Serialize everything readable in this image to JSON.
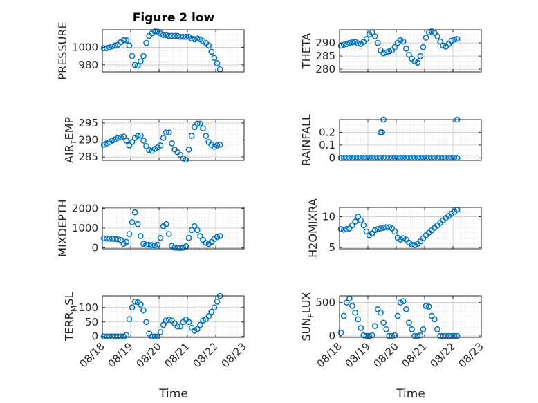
{
  "figure": {
    "title": "Figure 2 low",
    "xlabel": "Time"
  },
  "style": {
    "marker_color": "#0072BD",
    "axis_color": "#262626",
    "grid_color": "#d9d9d9"
  },
  "chart_data": [
    {
      "type": "scatter",
      "ylabel": "PRESSURE",
      "ylim": [
        972,
        1020
      ],
      "yticks": [
        980,
        1000
      ],
      "xticks": [
        "08/18",
        "08/19",
        "08/20",
        "08/21",
        "08/22",
        "08/23"
      ],
      "xlim": [
        0,
        5
      ],
      "grid": true,
      "x": [
        0.05,
        0.15,
        0.25,
        0.35,
        0.45,
        0.55,
        0.65,
        0.75,
        0.85,
        0.95,
        1.05,
        1.15,
        1.25,
        1.35,
        1.45,
        1.55,
        1.65,
        1.75,
        1.85,
        1.95,
        2.05,
        2.15,
        2.25,
        2.35,
        2.45,
        2.55,
        2.65,
        2.75,
        2.85,
        2.95,
        3.05,
        3.15,
        3.25,
        3.35,
        3.45,
        3.55,
        3.65,
        3.75,
        3.85,
        3.95,
        4.05,
        4.15
      ],
      "y": [
        999,
        999,
        1000,
        1001,
        1002,
        1003,
        1006,
        1008,
        1008,
        1002,
        990,
        980,
        979,
        984,
        990,
        1005,
        1013,
        1016,
        1018,
        1018,
        1016,
        1014,
        1014,
        1013,
        1013,
        1013,
        1013,
        1012,
        1012,
        1012,
        1012,
        1010,
        1009,
        1010,
        1009,
        1007,
        1005,
        1002,
        995,
        988,
        982,
        975
      ]
    },
    {
      "type": "scatter",
      "ylabel": "THETA",
      "ylim": [
        279,
        295
      ],
      "yticks": [
        280,
        285,
        290
      ],
      "xticks": [
        "08/18",
        "08/19",
        "08/20",
        "08/21",
        "08/22",
        "08/23"
      ],
      "xlim": [
        0,
        5
      ],
      "grid": true,
      "x": [
        0.05,
        0.15,
        0.25,
        0.35,
        0.45,
        0.55,
        0.65,
        0.75,
        0.85,
        0.95,
        1.05,
        1.15,
        1.25,
        1.35,
        1.45,
        1.55,
        1.65,
        1.75,
        1.85,
        1.95,
        2.05,
        2.15,
        2.25,
        2.35,
        2.45,
        2.55,
        2.65,
        2.75,
        2.85,
        2.95,
        3.05,
        3.15,
        3.25,
        3.35,
        3.45,
        3.55,
        3.65,
        3.75,
        3.85,
        3.95,
        4.05,
        4.15
      ],
      "y": [
        289,
        289.3,
        289.6,
        290,
        290.2,
        290.4,
        289.8,
        289.6,
        290.4,
        291.5,
        293.2,
        294,
        292.5,
        290,
        287.2,
        286,
        286.4,
        286.8,
        287.2,
        288.4,
        290,
        291,
        290.5,
        287.8,
        285.5,
        284,
        283,
        282.5,
        285,
        288.4,
        292,
        294,
        294.4,
        293.8,
        292.5,
        290.5,
        289,
        288.6,
        289.6,
        290.8,
        291.3,
        291.5
      ]
    },
    {
      "type": "scatter",
      "ylabel": "AIR_TEMP",
      "ylim": [
        284,
        296
      ],
      "yticks": [
        285,
        290,
        295
      ],
      "xticks": [
        "08/18",
        "08/19",
        "08/20",
        "08/21",
        "08/22",
        "08/23"
      ],
      "xlim": [
        0,
        5
      ],
      "grid": true,
      "x": [
        0.05,
        0.15,
        0.25,
        0.35,
        0.45,
        0.55,
        0.65,
        0.75,
        0.85,
        0.95,
        1.05,
        1.15,
        1.25,
        1.35,
        1.45,
        1.55,
        1.65,
        1.75,
        1.85,
        1.95,
        2.05,
        2.15,
        2.25,
        2.35,
        2.45,
        2.55,
        2.65,
        2.75,
        2.85,
        2.95,
        3.05,
        3.15,
        3.25,
        3.35,
        3.45,
        3.55,
        3.65,
        3.75,
        3.85,
        3.95,
        4.05,
        4.15
      ],
      "y": [
        288.6,
        289,
        289.4,
        289.8,
        290.2,
        290.6,
        290.8,
        291,
        289.8,
        288.4,
        289.4,
        290.6,
        291.2,
        291.3,
        289.8,
        288.2,
        287,
        286.8,
        287.4,
        287.8,
        288.4,
        290.6,
        292.2,
        292.2,
        289,
        287.2,
        286.4,
        285.6,
        284.6,
        284.2,
        287.2,
        291.2,
        293.8,
        294.8,
        294.8,
        293.4,
        291.2,
        289.4,
        288.6,
        288,
        288.4,
        288.6
      ]
    },
    {
      "type": "scatter",
      "ylabel": "RAINFALL",
      "ylim": [
        -0.02,
        0.3
      ],
      "yticks": [
        0,
        0.1,
        0.2
      ],
      "xticks": [
        "08/18",
        "08/19",
        "08/20",
        "08/21",
        "08/22",
        "08/23"
      ],
      "xlim": [
        0,
        5
      ],
      "grid": true,
      "x": [
        0.05,
        0.15,
        0.25,
        0.35,
        0.45,
        0.55,
        0.65,
        0.75,
        0.85,
        0.95,
        1.05,
        1.15,
        1.25,
        1.35,
        1.45,
        1.55,
        1.65,
        1.75,
        1.85,
        1.95,
        2.05,
        2.15,
        2.25,
        2.35,
        2.45,
        2.55,
        2.65,
        2.75,
        2.85,
        2.95,
        3.05,
        3.15,
        3.25,
        3.35,
        3.45,
        3.55,
        3.65,
        3.75,
        3.85,
        3.95,
        4.05,
        4.15,
        1.45,
        1.5,
        1.55,
        4.15
      ],
      "y": [
        0,
        0,
        0,
        0,
        0,
        0,
        0,
        0,
        0,
        0,
        0,
        0,
        0,
        0,
        0,
        0,
        0,
        0,
        0,
        0,
        0,
        0,
        0,
        0,
        0,
        0,
        0,
        0,
        0,
        0,
        0,
        0,
        0,
        0,
        0,
        0,
        0,
        0,
        0,
        0,
        0,
        0,
        0.2,
        0.2,
        0.3,
        0.3
      ]
    },
    {
      "type": "scatter",
      "ylabel": "MIXDEPTH",
      "ylim": [
        -50,
        2050
      ],
      "yticks": [
        0,
        1000,
        2000
      ],
      "xticks": [
        "08/18",
        "08/19",
        "08/20",
        "08/21",
        "08/22",
        "08/23"
      ],
      "xlim": [
        0,
        5
      ],
      "grid": true,
      "x": [
        0.05,
        0.15,
        0.25,
        0.35,
        0.45,
        0.55,
        0.65,
        0.75,
        0.85,
        0.95,
        1.05,
        1.15,
        1.25,
        1.35,
        1.45,
        1.55,
        1.65,
        1.75,
        1.85,
        1.95,
        2.05,
        2.15,
        2.25,
        2.35,
        2.45,
        2.55,
        2.65,
        2.75,
        2.85,
        2.95,
        3.05,
        3.15,
        3.25,
        3.35,
        3.45,
        3.55,
        3.65,
        3.75,
        3.85,
        3.95,
        4.05,
        4.15
      ],
      "y": [
        480,
        470,
        460,
        460,
        450,
        430,
        400,
        200,
        300,
        700,
        1300,
        1800,
        1200,
        600,
        200,
        160,
        150,
        140,
        130,
        160,
        500,
        1100,
        1200,
        700,
        100,
        10,
        0,
        0,
        10,
        80,
        500,
        900,
        1100,
        900,
        600,
        400,
        250,
        200,
        300,
        450,
        550,
        600
      ]
    },
    {
      "type": "scatter",
      "ylabel": "H2OMIXRA",
      "ylim": [
        4.8,
        11.5
      ],
      "yticks": [
        5,
        10
      ],
      "xticks": [
        "08/18",
        "08/19",
        "08/20",
        "08/21",
        "08/22",
        "08/23"
      ],
      "xlim": [
        0,
        5
      ],
      "grid": true,
      "x": [
        0.05,
        0.15,
        0.25,
        0.35,
        0.45,
        0.55,
        0.65,
        0.75,
        0.85,
        0.95,
        1.05,
        1.15,
        1.25,
        1.35,
        1.45,
        1.55,
        1.65,
        1.75,
        1.85,
        1.95,
        2.05,
        2.15,
        2.25,
        2.35,
        2.45,
        2.55,
        2.65,
        2.75,
        2.85,
        2.95,
        3.05,
        3.15,
        3.25,
        3.35,
        3.45,
        3.55,
        3.65,
        3.75,
        3.85,
        3.95,
        4.05,
        4.15
      ],
      "y": [
        8,
        7.9,
        8,
        8.1,
        8.6,
        9.2,
        10,
        9.4,
        8.6,
        7.6,
        7,
        7.3,
        7.8,
        8,
        8.1,
        8.2,
        8.3,
        8.3,
        8.1,
        7.6,
        6.6,
        6.3,
        6.5,
        6.3,
        5.8,
        5.5,
        5.4,
        5.6,
        6,
        6.5,
        7,
        7.4,
        7.8,
        8.2,
        8.6,
        9,
        9.4,
        9.8,
        10.1,
        10.5,
        10.8,
        11.1
      ]
    },
    {
      "type": "scatter",
      "ylabel": "TERR_MSL",
      "ylim": [
        -3,
        140
      ],
      "yticks": [
        0,
        50,
        100
      ],
      "xticks": [
        "08/18",
        "08/19",
        "08/20",
        "08/21",
        "08/22",
        "08/23"
      ],
      "xlim": [
        0,
        5
      ],
      "grid": true,
      "x": [
        0.05,
        0.15,
        0.25,
        0.35,
        0.45,
        0.55,
        0.65,
        0.75,
        0.85,
        0.95,
        1.05,
        1.15,
        1.25,
        1.35,
        1.45,
        1.55,
        1.65,
        1.75,
        1.85,
        1.95,
        2.05,
        2.15,
        2.25,
        2.35,
        2.45,
        2.55,
        2.65,
        2.75,
        2.85,
        2.95,
        3.05,
        3.15,
        3.25,
        3.35,
        3.45,
        3.55,
        3.65,
        3.75,
        3.85,
        3.95,
        4.05,
        4.15
      ],
      "y": [
        0,
        0,
        0,
        0,
        0,
        0,
        0,
        0,
        5,
        60,
        100,
        120,
        118,
        110,
        90,
        50,
        10,
        0,
        0,
        0,
        15,
        40,
        55,
        58,
        55,
        45,
        35,
        35,
        50,
        58,
        50,
        30,
        20,
        25,
        40,
        55,
        60,
        70,
        85,
        100,
        120,
        140
      ]
    },
    {
      "type": "scatter",
      "ylabel": "SUN_FLUX",
      "ylim": [
        -20,
        600
      ],
      "yticks": [
        0,
        500
      ],
      "xticks": [
        "08/18",
        "08/19",
        "08/20",
        "08/21",
        "08/22",
        "08/23"
      ],
      "xlim": [
        0,
        5
      ],
      "grid": true,
      "x": [
        0.05,
        0.15,
        0.25,
        0.35,
        0.45,
        0.55,
        0.65,
        0.75,
        0.85,
        0.95,
        1.05,
        1.15,
        1.25,
        1.35,
        1.45,
        1.55,
        1.65,
        1.75,
        1.85,
        1.95,
        2.05,
        2.15,
        2.25,
        2.35,
        2.45,
        2.55,
        2.65,
        2.75,
        2.85,
        2.95,
        3.05,
        3.15,
        3.25,
        3.35,
        3.45,
        3.55,
        3.65,
        3.75,
        3.85,
        3.95,
        4.05,
        4.15
      ],
      "y": [
        50,
        300,
        500,
        560,
        450,
        350,
        250,
        120,
        10,
        0,
        0,
        10,
        150,
        400,
        350,
        200,
        100,
        0,
        0,
        10,
        300,
        500,
        520,
        400,
        200,
        100,
        0,
        0,
        10,
        100,
        450,
        440,
        300,
        250,
        100,
        0,
        0,
        0,
        0,
        0,
        0,
        0
      ]
    }
  ]
}
